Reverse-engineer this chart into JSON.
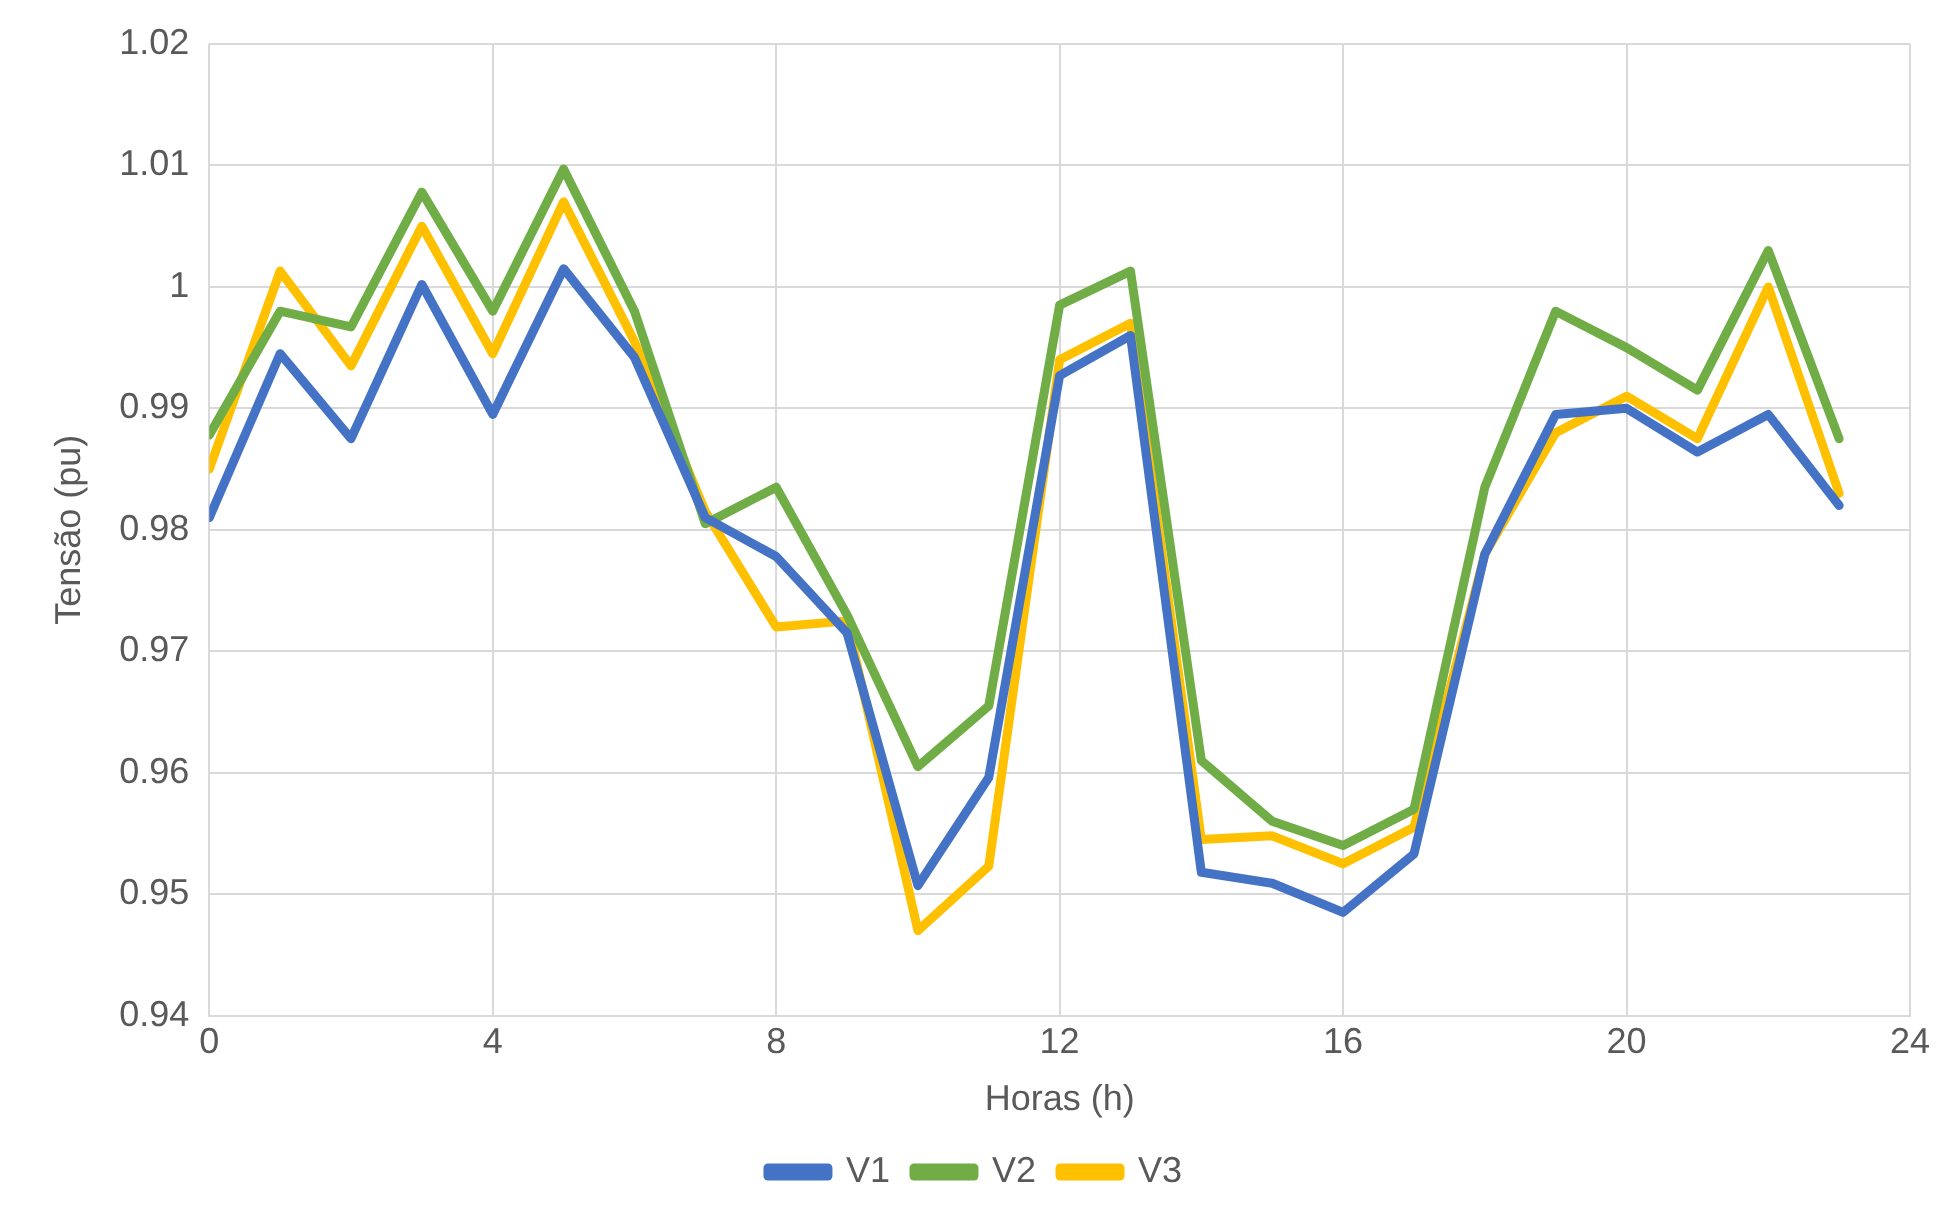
{
  "chart_data": {
    "type": "line",
    "xlabel": "Horas (h)",
    "ylabel": "Tensão (pu)",
    "x": [
      0,
      1,
      2,
      3,
      4,
      5,
      6,
      7,
      8,
      9,
      10,
      11,
      12,
      13,
      14,
      15,
      16,
      17,
      18,
      19,
      20,
      21,
      22,
      23
    ],
    "series": [
      {
        "name": "V1",
        "color": "#4472c4",
        "values": [
          0.981,
          0.9945,
          0.9875,
          1.0002,
          0.9895,
          1.0015,
          0.9942,
          0.981,
          0.9778,
          0.9715,
          0.9507,
          0.9596,
          0.9927,
          0.996,
          0.9518,
          0.9509,
          0.9485,
          0.9533,
          0.978,
          0.9895,
          0.99,
          0.9864,
          0.9895,
          0.982
        ]
      },
      {
        "name": "V2",
        "color": "#70ad47",
        "values": [
          0.9878,
          0.998,
          0.9967,
          1.0078,
          0.998,
          1.0097,
          0.998,
          0.9805,
          0.9835,
          0.973,
          0.9605,
          0.9655,
          0.9985,
          1.0013,
          0.961,
          0.956,
          0.954,
          0.957,
          0.9835,
          0.998,
          0.995,
          0.9915,
          1.003,
          0.9875
        ]
      },
      {
        "name": "V3",
        "color": "#ffc000",
        "values": [
          0.985,
          1.0013,
          0.9935,
          1.005,
          0.9945,
          1.007,
          0.9955,
          0.9815,
          0.972,
          0.9725,
          0.947,
          0.9523,
          0.994,
          0.997,
          0.9545,
          0.9548,
          0.9525,
          0.9555,
          0.978,
          0.988,
          0.991,
          0.9875,
          1.0,
          0.983
        ]
      }
    ],
    "xlim": [
      0,
      24
    ],
    "xticks": [
      0,
      4,
      8,
      12,
      16,
      20,
      24
    ],
    "ylim": [
      0.94,
      1.02
    ],
    "yticks": [
      0.94,
      0.95,
      0.96,
      0.97,
      0.98,
      0.99,
      1,
      1.01,
      1.02
    ],
    "grid": true,
    "legend": "bottom",
    "marker": "none",
    "line_style": "solid"
  }
}
